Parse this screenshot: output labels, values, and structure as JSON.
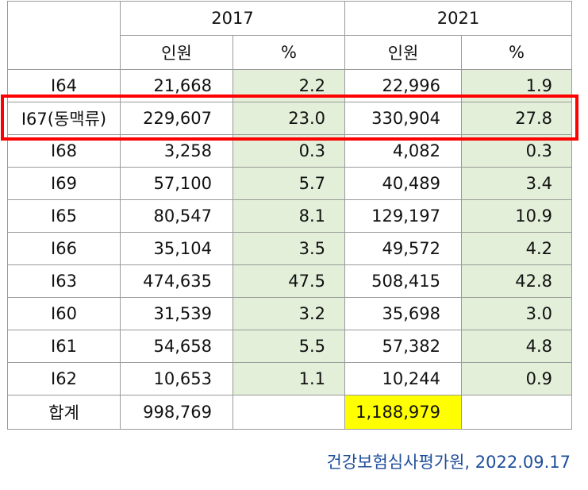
{
  "header": {
    "year_a": "2017",
    "year_b": "2021",
    "col_people": "인원",
    "col_pct": "%"
  },
  "rows": [
    {
      "code": "I64",
      "a_people": "21,668",
      "a_pct": "2.2",
      "b_people": "22,996",
      "b_pct": "1.9"
    },
    {
      "code": "I67(동맥류)",
      "a_people": "229,607",
      "a_pct": "23.0",
      "b_people": "330,904",
      "b_pct": "27.8"
    },
    {
      "code": "I68",
      "a_people": "3,258",
      "a_pct": "0.3",
      "b_people": "4,082",
      "b_pct": "0.3"
    },
    {
      "code": "I69",
      "a_people": "57,100",
      "a_pct": "5.7",
      "b_people": "40,489",
      "b_pct": "3.4"
    },
    {
      "code": "I65",
      "a_people": "80,547",
      "a_pct": "8.1",
      "b_people": "129,197",
      "b_pct": "10.9"
    },
    {
      "code": "I66",
      "a_people": "35,104",
      "a_pct": "3.5",
      "b_people": "49,572",
      "b_pct": "4.2"
    },
    {
      "code": "I63",
      "a_people": "474,635",
      "a_pct": "47.5",
      "b_people": "508,415",
      "b_pct": "42.8"
    },
    {
      "code": "I60",
      "a_people": "31,539",
      "a_pct": "3.2",
      "b_people": "35,698",
      "b_pct": "3.0"
    },
    {
      "code": "I61",
      "a_people": "54,658",
      "a_pct": "5.5",
      "b_people": "57,382",
      "b_pct": "4.8"
    },
    {
      "code": "I62",
      "a_people": "10,653",
      "a_pct": "1.1",
      "b_people": "10,244",
      "b_pct": "0.9"
    }
  ],
  "total": {
    "label": "합계",
    "a_people": "998,769",
    "b_people": "1,188,979"
  },
  "source_text": "건강보험심사평가원, 2022.09.17",
  "colors": {
    "pct_fill": "#e3efd9",
    "total_highlight": "#ffff00",
    "box_outline": "#ff0000",
    "source_text": "#1f4e9a"
  }
}
